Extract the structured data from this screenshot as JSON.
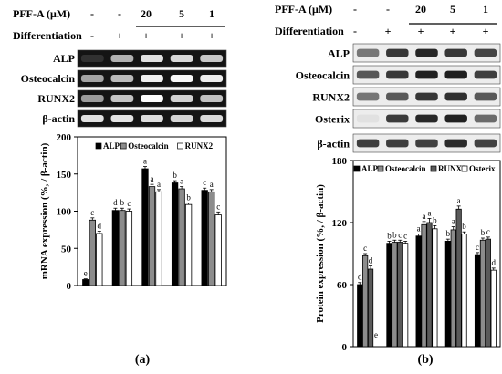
{
  "panels": [
    {
      "id": "a",
      "panel_label": "(a)",
      "header": {
        "treatment_label": "PFF-A (μM)",
        "treatment_values": [
          "-",
          "-",
          "20",
          "5",
          "1"
        ],
        "differentiation_label": "Differentiation",
        "differentiation_values": [
          "-",
          "+",
          "+",
          "+",
          "+"
        ]
      },
      "blot_labels": [
        "ALP",
        "Osteocalcin",
        "RUNX2",
        "β-actin"
      ],
      "blot_style": "gel"
    },
    {
      "id": "b",
      "panel_label": "(b)",
      "header": {
        "treatment_label": "PFF-A (μM)",
        "treatment_values": [
          "-",
          "-",
          "20",
          "5",
          "1"
        ],
        "differentiation_label": "Differentiation",
        "differentiation_values": [
          "-",
          "+",
          "+",
          "+",
          "+"
        ]
      },
      "blot_labels": [
        "ALP",
        "Osteocalcin",
        "RUNX2",
        "Osterix",
        "β-actin"
      ],
      "blot_style": "western"
    }
  ],
  "chart_data": [
    {
      "type": "bar",
      "panel": "a",
      "categories": [
        "",
        "",
        "",
        "",
        ""
      ],
      "series": [
        {
          "name": "ALP",
          "values": [
            8,
            101,
            157,
            138,
            128
          ],
          "errors": [
            1,
            3,
            3,
            3,
            3
          ],
          "letters": [
            "e",
            "d",
            "a",
            "b",
            "c"
          ]
        },
        {
          "name": "Osteocalcin",
          "values": [
            88,
            101,
            133,
            130,
            126
          ],
          "errors": [
            3,
            3,
            3,
            3,
            3
          ],
          "letters": [
            "c",
            "b",
            "a",
            "a",
            "a"
          ]
        },
        {
          "name": "RUNX2",
          "values": [
            70,
            100,
            126,
            109,
            95
          ],
          "errors": [
            3,
            3,
            3,
            2,
            4
          ],
          "letters": [
            "d",
            "c",
            "a",
            "b",
            "c"
          ]
        }
      ],
      "colors": [
        "#000000",
        "#8c8c8c",
        "#ffffff"
      ],
      "ylabel": "mRNA expression (%, / β-actin)",
      "ylim": [
        0,
        200
      ],
      "yticks": [
        0,
        50,
        100,
        150,
        200
      ],
      "grid": false,
      "legend_position": "top"
    },
    {
      "type": "bar",
      "panel": "b",
      "categories": [
        "",
        "",
        "",
        "",
        ""
      ],
      "series": [
        {
          "name": "ALP",
          "values": [
            60,
            100,
            107,
            102,
            89
          ],
          "errors": [
            2,
            2,
            2,
            2,
            2
          ],
          "letters": [
            "d",
            "b",
            "a",
            "b",
            "c"
          ]
        },
        {
          "name": "Osteocalcin",
          "values": [
            88,
            101,
            118,
            113,
            103
          ],
          "errors": [
            2,
            2,
            3,
            3,
            2
          ],
          "letters": [
            "c",
            "b",
            "a",
            "a",
            "b"
          ]
        },
        {
          "name": "RUNX2",
          "values": [
            75,
            101,
            120,
            133,
            104
          ],
          "errors": [
            3,
            2,
            4,
            3,
            2
          ],
          "letters": [
            "d",
            "c",
            "a",
            "a",
            "c"
          ]
        },
        {
          "name": "Osterix",
          "values": [
            0,
            100,
            114,
            109,
            74
          ],
          "errors": [
            0,
            2,
            3,
            2,
            2
          ],
          "letters": [
            "e",
            "c",
            "b",
            "b",
            "d"
          ]
        }
      ],
      "colors": [
        "#000000",
        "#8c8c8c",
        "#5a5a5a",
        "#ffffff"
      ],
      "ylabel": "Protein expression (%, / β-actin)",
      "ylim": [
        0,
        180
      ],
      "yticks": [
        0,
        60,
        120,
        180
      ],
      "grid": false,
      "legend_position": "top"
    }
  ]
}
